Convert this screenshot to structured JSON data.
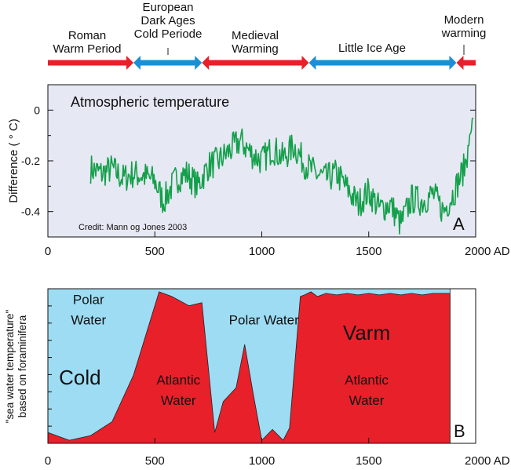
{
  "colors": {
    "red": "#e8202a",
    "blue": "#1a8fd6",
    "green": "#13a04a",
    "panel_a_bg": "#e6e8f4",
    "ice": "#9ddcf3"
  },
  "periods": [
    {
      "lines": [
        "Roman",
        "Warm Period"
      ],
      "start": 0,
      "end": 400,
      "color": "red"
    },
    {
      "lines": [
        "European",
        "Dark Ages",
        "Cold Periode"
      ],
      "start": 400,
      "end": 720,
      "color": "blue"
    },
    {
      "lines": [
        "Medieval",
        "Warming"
      ],
      "start": 720,
      "end": 1220,
      "color": "red"
    },
    {
      "lines": [
        "Little Ice Age"
      ],
      "start": 1220,
      "end": 1910,
      "color": "blue"
    },
    {
      "lines": [
        "Modern",
        "warming"
      ],
      "start": 1910,
      "end": 2000,
      "color": "red"
    }
  ],
  "chart_data": [
    {
      "type": "line",
      "panel_label": "A",
      "title": "Atmospheric temperature",
      "annotation": "Credit: Mann og Jones 2003",
      "ylabel": "Difference  ( ° C)",
      "xlim": [
        0,
        2000
      ],
      "ylim": [
        -0.5,
        0.1
      ],
      "xticks": [
        "0",
        "500",
        "1000",
        "1500",
        "2000 AD"
      ],
      "yticks": [
        "0",
        "-0.2",
        "-0.4"
      ],
      "series": [
        {
          "x": [
            200,
            250,
            300,
            350,
            400,
            450,
            500,
            540,
            600,
            650,
            700,
            750,
            800,
            850,
            900,
            950,
            1000,
            1050,
            1100,
            1150,
            1200,
            1250,
            1300,
            1350,
            1400,
            1450,
            1500,
            1550,
            1600,
            1650,
            1700,
            1750,
            1800,
            1850,
            1900,
            1950,
            1990
          ],
          "y": [
            -0.23,
            -0.25,
            -0.23,
            -0.27,
            -0.25,
            -0.26,
            -0.28,
            -0.36,
            -0.27,
            -0.25,
            -0.3,
            -0.22,
            -0.2,
            -0.16,
            -0.12,
            -0.17,
            -0.2,
            -0.15,
            -0.19,
            -0.14,
            -0.21,
            -0.25,
            -0.27,
            -0.25,
            -0.31,
            -0.37,
            -0.32,
            -0.39,
            -0.37,
            -0.45,
            -0.35,
            -0.36,
            -0.33,
            -0.4,
            -0.32,
            -0.22,
            -0.02
          ]
        }
      ]
    },
    {
      "type": "area",
      "panel_label": "B",
      "ylabel": [
        "\"sea water temperature\"",
        "based on  foraminifera"
      ],
      "xlim": [
        0,
        2000
      ],
      "ylim": [
        0,
        1
      ],
      "xticks": [
        "0",
        "500",
        "1000",
        "1500",
        "2000 AD"
      ],
      "x": [
        0,
        100,
        200,
        300,
        400,
        520,
        580,
        660,
        720,
        780,
        820,
        880,
        920,
        960,
        1000,
        1050,
        1100,
        1130,
        1180,
        1200,
        1230,
        1260,
        1300,
        1350,
        1400,
        1450,
        1500,
        1550,
        1600,
        1650,
        1700,
        1750,
        1800,
        1880
      ],
      "y": [
        0.07,
        0.02,
        0.05,
        0.14,
        0.44,
        0.98,
        0.95,
        0.89,
        0.91,
        0.07,
        0.27,
        0.36,
        0.64,
        0.32,
        0.02,
        0.09,
        0.02,
        0.1,
        0.95,
        0.96,
        0.98,
        0.95,
        0.97,
        0.96,
        0.97,
        0.96,
        0.97,
        0.96,
        0.97,
        0.96,
        0.97,
        0.96,
        0.97,
        0.97
      ],
      "region_labels": [
        {
          "text": "Polar",
          "x": 190,
          "y": 0.9,
          "size": 17
        },
        {
          "text": "Water",
          "x": 190,
          "y": 0.77,
          "size": 17
        },
        {
          "text": "Cold",
          "x": 150,
          "y": 0.38,
          "size": 26
        },
        {
          "text": "Atlantic",
          "x": 610,
          "y": 0.38,
          "size": 17
        },
        {
          "text": "Water",
          "x": 610,
          "y": 0.25,
          "size": 17
        },
        {
          "text": "Polar Water",
          "x": 1010,
          "y": 0.77,
          "size": 17
        },
        {
          "text": "Varm",
          "x": 1490,
          "y": 0.67,
          "size": 26
        },
        {
          "text": "Atlantic",
          "x": 1490,
          "y": 0.38,
          "size": 17
        },
        {
          "text": "Water",
          "x": 1490,
          "y": 0.25,
          "size": 17
        }
      ]
    }
  ]
}
